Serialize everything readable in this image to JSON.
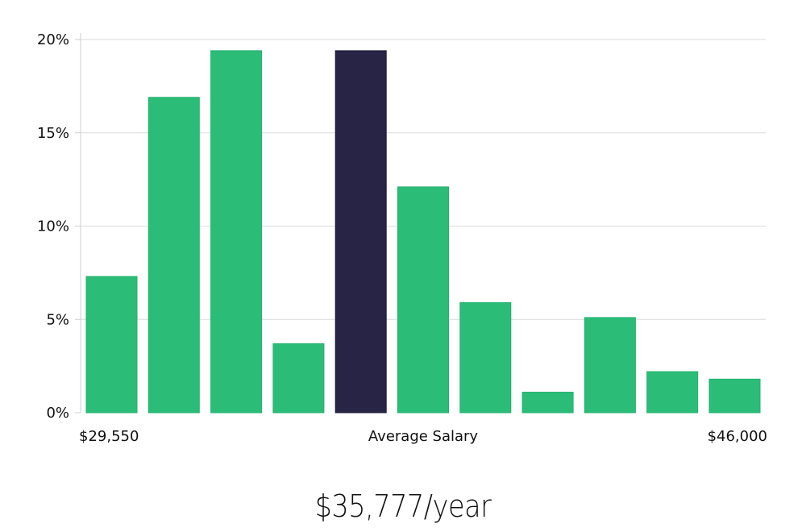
{
  "chart_data": {
    "type": "bar",
    "title": "",
    "xlabel": "Average Salary",
    "ylabel": "",
    "ylim": [
      0,
      20
    ],
    "y_ticks": [
      "0%",
      "5%",
      "10%",
      "15%",
      "20%"
    ],
    "y_tick_values": [
      0,
      5,
      10,
      15,
      20
    ],
    "x_range_labels": {
      "min": "$29,550",
      "center": "Average Salary",
      "max": "$46,000"
    },
    "values": [
      7.3,
      16.9,
      19.4,
      3.7,
      19.4,
      12.1,
      5.9,
      1.1,
      5.1,
      2.2,
      1.8
    ],
    "highlight_index": 4,
    "grid": true,
    "colors": {
      "bar": "#2bbd77",
      "highlight": "#272445",
      "grid": "#dcdcdc"
    }
  },
  "salary": {
    "average": "$35,777/year"
  }
}
